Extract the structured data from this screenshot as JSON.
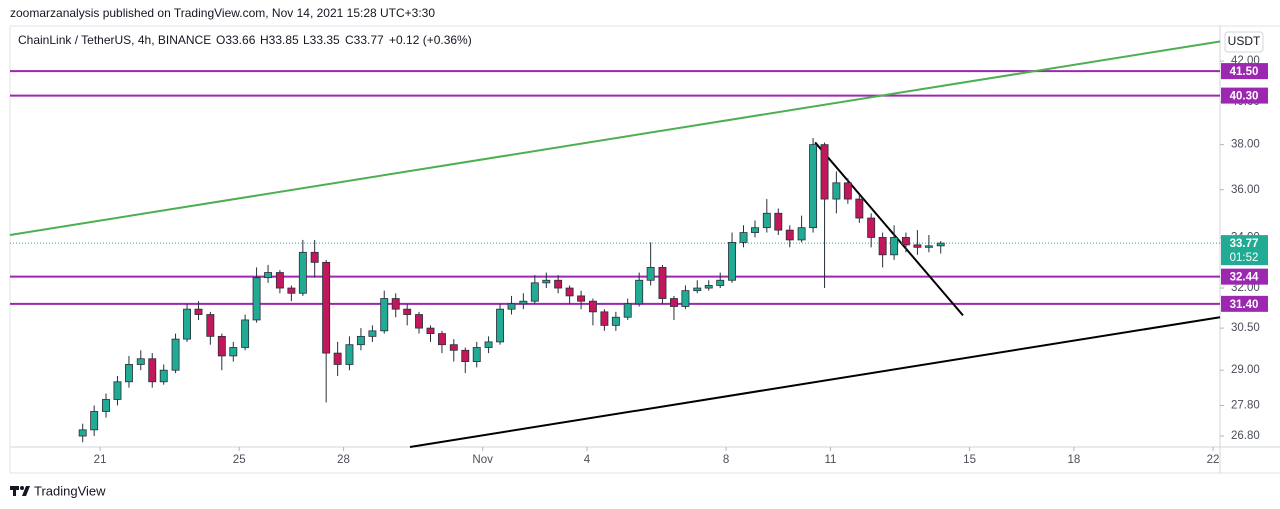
{
  "chart_data": {
    "type": "candlestick",
    "publisher_note": "zoomarzanalysis published on TradingView.com, Nov 14, 2021 15:28 UTC+3:30",
    "title": "ChainLink / TetherUS, 4h, BINANCE",
    "ohlc": {
      "open": "O33.66",
      "high": "H33.85",
      "low": "L33.35",
      "close": "C33.77",
      "change": "+0.12 (+0.36%)"
    },
    "currency": "USDT",
    "brand": "TradingView",
    "log_scale": true,
    "grid": false,
    "up_color": "#22ab94",
    "down_color": "#c2185b",
    "xlim": [
      18.41,
      53.2
    ],
    "xticks": [
      21,
      25,
      28,
      {
        "value": 32,
        "label": "Nov"
      },
      {
        "value": 35,
        "label": "4"
      },
      {
        "value": 39,
        "label": "8"
      },
      {
        "value": 42,
        "label": "11"
      },
      {
        "value": 46,
        "label": "15"
      },
      {
        "value": 49,
        "label": "18"
      },
      {
        "value": 53,
        "label": "22"
      }
    ],
    "ylim": [
      26.45,
      43.7
    ],
    "yticks": [
      {
        "value": 26.8,
        "label": "26.80"
      },
      {
        "value": 27.8,
        "label": "27.80"
      },
      {
        "value": 29,
        "label": "29.00"
      },
      {
        "value": 30.5,
        "label": "30.50"
      },
      {
        "value": 32,
        "label": "32.00"
      },
      {
        "value": 34,
        "label": "34.00"
      },
      {
        "value": 36,
        "label": "36.00"
      },
      {
        "value": 38,
        "label": "38.00"
      },
      {
        "value": 40,
        "label": "40.00"
      },
      {
        "value": 42,
        "label": "42.00"
      }
    ],
    "x": [
      20.5,
      20.83,
      21.17,
      21.5,
      21.83,
      22.17,
      22.5,
      22.83,
      23.17,
      23.5,
      23.83,
      24.17,
      24.5,
      24.83,
      25.17,
      25.5,
      25.83,
      26.17,
      26.5,
      26.83,
      27.17,
      27.5,
      27.83,
      28.17,
      28.5,
      28.83,
      29.17,
      29.5,
      29.83,
      30.17,
      30.5,
      30.83,
      31.17,
      31.5,
      31.83,
      32.17,
      32.5,
      32.83,
      33.17,
      33.5,
      33.83,
      34.17,
      34.5,
      34.83,
      35.17,
      35.5,
      35.83,
      36.17,
      36.5,
      36.83,
      37.17,
      37.5,
      37.83,
      38.17,
      38.5,
      38.83,
      39.17,
      39.5,
      39.83,
      40.17,
      40.5,
      40.83,
      41.17,
      41.5,
      41.83,
      42.17,
      42.5,
      42.83,
      43.17,
      43.5,
      43.83,
      44.17,
      44.5,
      44.83,
      45.17
    ],
    "open": [
      26.8,
      27.0,
      27.6,
      28.0,
      28.6,
      29.2,
      29.4,
      28.6,
      29.0,
      30.1,
      31.2,
      31.0,
      30.2,
      29.5,
      29.8,
      30.8,
      32.4,
      32.6,
      32.0,
      31.8,
      33.4,
      33.0,
      29.6,
      29.2,
      29.9,
      30.2,
      30.4,
      31.6,
      31.2,
      31.0,
      30.5,
      30.3,
      29.9,
      29.7,
      29.3,
      29.8,
      30.0,
      31.2,
      31.4,
      31.5,
      32.2,
      32.3,
      32.0,
      31.7,
      31.5,
      31.1,
      30.6,
      30.9,
      31.4,
      32.3,
      32.8,
      31.6,
      31.3,
      31.9,
      32.0,
      32.1,
      32.3,
      33.8,
      34.2,
      34.4,
      35.0,
      34.3,
      33.9,
      34.4,
      38.0,
      35.6,
      36.3,
      35.6,
      34.8,
      34.0,
      33.3,
      34.0,
      33.7,
      33.6,
      33.66
    ],
    "high": [
      27.2,
      27.8,
      28.2,
      28.8,
      29.5,
      29.7,
      29.6,
      29.2,
      30.3,
      31.4,
      31.5,
      31.1,
      30.3,
      30.0,
      31.0,
      32.8,
      32.9,
      32.7,
      32.1,
      33.9,
      33.9,
      33.1,
      30.0,
      30.2,
      30.5,
      30.6,
      31.9,
      31.8,
      31.4,
      31.1,
      30.6,
      30.4,
      30.1,
      29.8,
      30.0,
      30.2,
      31.4,
      31.7,
      31.8,
      32.5,
      32.6,
      32.5,
      32.1,
      31.9,
      31.6,
      31.2,
      31.1,
      31.6,
      32.6,
      33.8,
      32.9,
      31.7,
      32.1,
      32.3,
      32.3,
      32.6,
      34.2,
      34.5,
      34.7,
      35.6,
      35.2,
      34.5,
      34.9,
      38.3,
      38.1,
      36.8,
      36.5,
      35.8,
      35.0,
      34.2,
      34.5,
      34.2,
      34.3,
      34.1,
      33.85
    ],
    "low": [
      26.6,
      26.8,
      27.4,
      27.8,
      28.4,
      29.0,
      28.4,
      28.5,
      28.9,
      30.0,
      30.8,
      29.9,
      29.0,
      29.3,
      29.7,
      30.7,
      32.2,
      31.8,
      31.5,
      31.7,
      32.4,
      27.9,
      28.8,
      29.0,
      29.7,
      30.0,
      30.3,
      30.9,
      30.6,
      30.3,
      30.0,
      29.6,
      29.3,
      28.9,
      29.1,
      29.6,
      29.9,
      31.0,
      31.2,
      31.4,
      32.0,
      31.8,
      31.4,
      31.2,
      30.6,
      30.4,
      30.4,
      30.8,
      31.3,
      32.1,
      31.4,
      30.8,
      31.2,
      31.8,
      31.9,
      32.0,
      32.2,
      33.6,
      34.0,
      34.2,
      34.1,
      33.6,
      33.8,
      34.2,
      32.0,
      35.0,
      35.4,
      34.6,
      33.6,
      32.8,
      33.1,
      33.4,
      33.3,
      33.4,
      33.35
    ],
    "close": [
      27.0,
      27.6,
      28.0,
      28.6,
      29.2,
      29.4,
      28.6,
      29.0,
      30.1,
      31.2,
      31.0,
      30.2,
      29.5,
      29.8,
      30.8,
      32.4,
      32.6,
      32.0,
      31.8,
      33.4,
      33.0,
      29.6,
      29.2,
      29.9,
      30.2,
      30.4,
      31.6,
      31.2,
      31.0,
      30.5,
      30.3,
      29.9,
      29.7,
      29.3,
      29.8,
      30.0,
      31.2,
      31.4,
      31.5,
      32.2,
      32.3,
      32.0,
      31.7,
      31.5,
      31.1,
      30.6,
      30.9,
      31.4,
      32.3,
      32.8,
      31.6,
      31.3,
      31.9,
      32.0,
      32.1,
      32.3,
      33.8,
      34.2,
      34.4,
      35.0,
      34.3,
      33.9,
      34.4,
      38.0,
      35.6,
      36.3,
      35.6,
      34.8,
      34.0,
      33.3,
      34.0,
      33.7,
      33.6,
      33.66,
      33.77
    ],
    "hlines": {
      "values": [
        41.5,
        40.3,
        32.44,
        31.4
      ],
      "value_labels": [
        "41.50",
        "40.30",
        "32.44",
        "31.40"
      ],
      "color": "#9c27b0"
    },
    "price_line": {
      "value": 33.77,
      "label": "33.77",
      "countdown": "01:52",
      "color": "#22ab94"
    },
    "trendlines": [
      {
        "x": [
          18.41,
          53.2
        ],
        "y": [
          34.1,
          43.0
        ],
        "color": "#4caf50"
      },
      {
        "x": [
          29.91,
          53.2
        ],
        "y": [
          26.45,
          30.9
        ],
        "color": "#000000"
      },
      {
        "x": [
          41.56,
          45.81
        ],
        "y": [
          38.1,
          30.97
        ],
        "color": "#000000"
      }
    ]
  }
}
